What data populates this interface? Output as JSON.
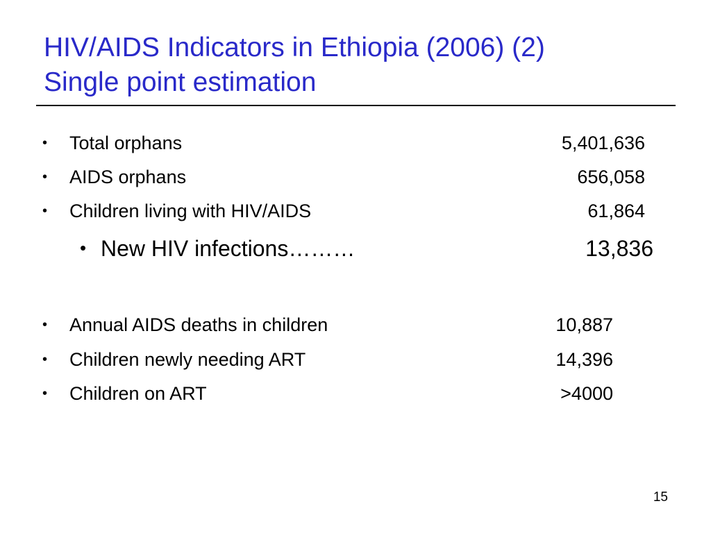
{
  "slide": {
    "title_line1": "HIV/AIDS Indicators in Ethiopia (2006) (2)",
    "title_line2": "Single point estimation",
    "title_color": "#2929c9",
    "bullet_glyph": "•",
    "items": [
      {
        "label": "Total orphans",
        "value": "5,401,636"
      },
      {
        "label": "AIDS orphans",
        "value": "656,058"
      },
      {
        "label": "Children living with HIV/AIDS",
        "value": "61,864"
      },
      {
        "label": "New HIV infections………",
        "value": "13,836"
      },
      {
        "label": "Annual AIDS deaths in children",
        "value": "10,887"
      },
      {
        "label": "Children newly needing ART",
        "value": "14,396"
      },
      {
        "label": "Children on ART",
        "value": ">4000"
      }
    ],
    "page_number": "15"
  }
}
